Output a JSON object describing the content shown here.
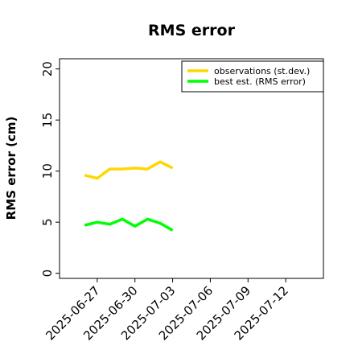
{
  "chart_data": {
    "type": "line",
    "title": "RMS error",
    "xlabel": "",
    "ylabel": "RMS error (cm)",
    "ylim": [
      -0.5,
      21
    ],
    "yticks": [
      0,
      5,
      10,
      15,
      20
    ],
    "xlim": [
      "2025-06-24",
      "2025-07-15"
    ],
    "xticks": [
      "2025-06-27",
      "2025-06-30",
      "2025-07-03",
      "2025-07-06",
      "2025-07-09",
      "2025-07-12"
    ],
    "highlighted_xtick": "2025-07-03",
    "highlight_color": "#228b22",
    "grid": false,
    "legend_position": "top-right",
    "x": [
      "2025-06-26",
      "2025-06-27",
      "2025-06-28",
      "2025-06-29",
      "2025-06-30",
      "2025-07-01",
      "2025-07-02",
      "2025-07-03"
    ],
    "series": [
      {
        "name": "observations (st.dev.)",
        "color": "#ffd700",
        "values": [
          9.6,
          9.3,
          10.2,
          10.2,
          10.3,
          10.2,
          10.9,
          10.3
        ]
      },
      {
        "name": "best est. (RMS error)",
        "color": "#00ff00",
        "values": [
          4.7,
          5.0,
          4.8,
          5.3,
          4.6,
          5.3,
          4.9,
          4.2
        ]
      }
    ]
  }
}
